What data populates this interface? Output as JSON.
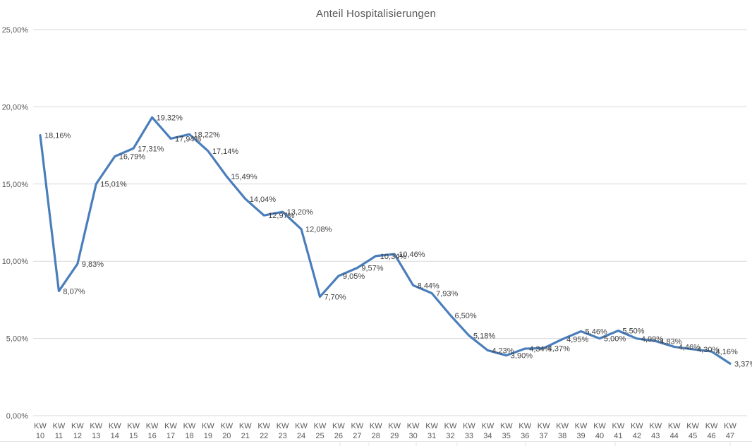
{
  "chart_data": {
    "type": "line",
    "title": "Anteil Hospitalisierungen",
    "category_prefix": "KW",
    "categories": [
      "10",
      "11",
      "12",
      "13",
      "14",
      "15",
      "16",
      "17",
      "18",
      "19",
      "20",
      "21",
      "22",
      "23",
      "24",
      "25",
      "26",
      "27",
      "28",
      "29",
      "30",
      "31",
      "32",
      "33",
      "34",
      "35",
      "36",
      "37",
      "38",
      "39",
      "40",
      "41",
      "42",
      "43",
      "44",
      "45",
      "46",
      "47"
    ],
    "values": [
      18.16,
      8.07,
      9.83,
      15.01,
      16.79,
      17.31,
      19.32,
      17.94,
      18.22,
      17.14,
      15.49,
      14.04,
      12.97,
      13.2,
      12.08,
      7.7,
      9.05,
      9.57,
      10.34,
      10.46,
      8.44,
      7.93,
      6.5,
      5.18,
      4.23,
      3.9,
      4.34,
      4.37,
      4.95,
      5.46,
      5.0,
      5.5,
      4.99,
      4.83,
      4.46,
      4.3,
      4.16,
      3.37
    ],
    "labels": [
      "18,16%",
      "8,07%",
      "9,83%",
      "15,01%",
      "16,79%",
      "17,31%",
      "19,32%",
      "17,94%",
      "18,22%",
      "17,14%",
      "15,49%",
      "14,04%",
      "12,97%",
      "13,20%",
      "12,08%",
      "7,70%",
      "9,05%",
      "9,57%",
      "10,34%",
      "10,46%",
      "8,44%",
      "7,93%",
      "6,50%",
      "5,18%",
      "4,23%",
      "3,90%",
      "4,34%",
      "4,37%",
      "4,95%",
      "5,46%",
      "5,00%",
      "5,50%",
      "4,99%",
      "4,83%",
      "4,46%",
      "4,30%",
      "4,16%",
      "3,37%"
    ],
    "ylim": [
      0,
      25
    ],
    "yticks": [
      0,
      5,
      10,
      15,
      20,
      25
    ],
    "ytick_labels": [
      "0,00%",
      "5,00%",
      "10,00%",
      "15,00%",
      "20,00%",
      "25,00%"
    ],
    "grid": true,
    "legend_position": "none",
    "line_color": "#4a7ebb",
    "data_label_color": "#404040",
    "axis_label_color": "#595959",
    "grid_color": "#d9d9d9",
    "sheet_line_color": "#e4e4e4"
  }
}
